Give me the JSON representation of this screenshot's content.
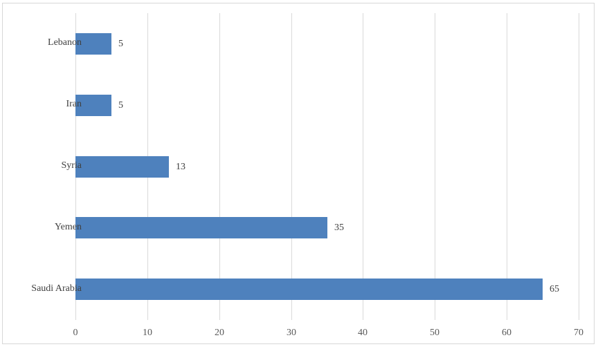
{
  "chart_data": {
    "type": "bar",
    "orientation": "horizontal",
    "title": "",
    "xlabel": "",
    "ylabel": "",
    "categories": [
      "Lebanon",
      "Iran",
      "Syria",
      "Yemen",
      "Saudi Arabia"
    ],
    "values": [
      5,
      5,
      13,
      35,
      65
    ],
    "data_labels": [
      "5",
      "5",
      "13",
      "35",
      "65"
    ],
    "xlim": [
      0,
      70
    ],
    "x_ticks": [
      "0",
      "10",
      "20",
      "30",
      "40",
      "50",
      "60",
      "70"
    ],
    "grid": true,
    "legend": false,
    "colors": {
      "bar": "#4e81bd",
      "gridline": "#d9d9d9",
      "chart_border": "#d7d7d7",
      "category_label": "#404040",
      "value_label": "#404040",
      "tick_label": "#595959"
    }
  }
}
